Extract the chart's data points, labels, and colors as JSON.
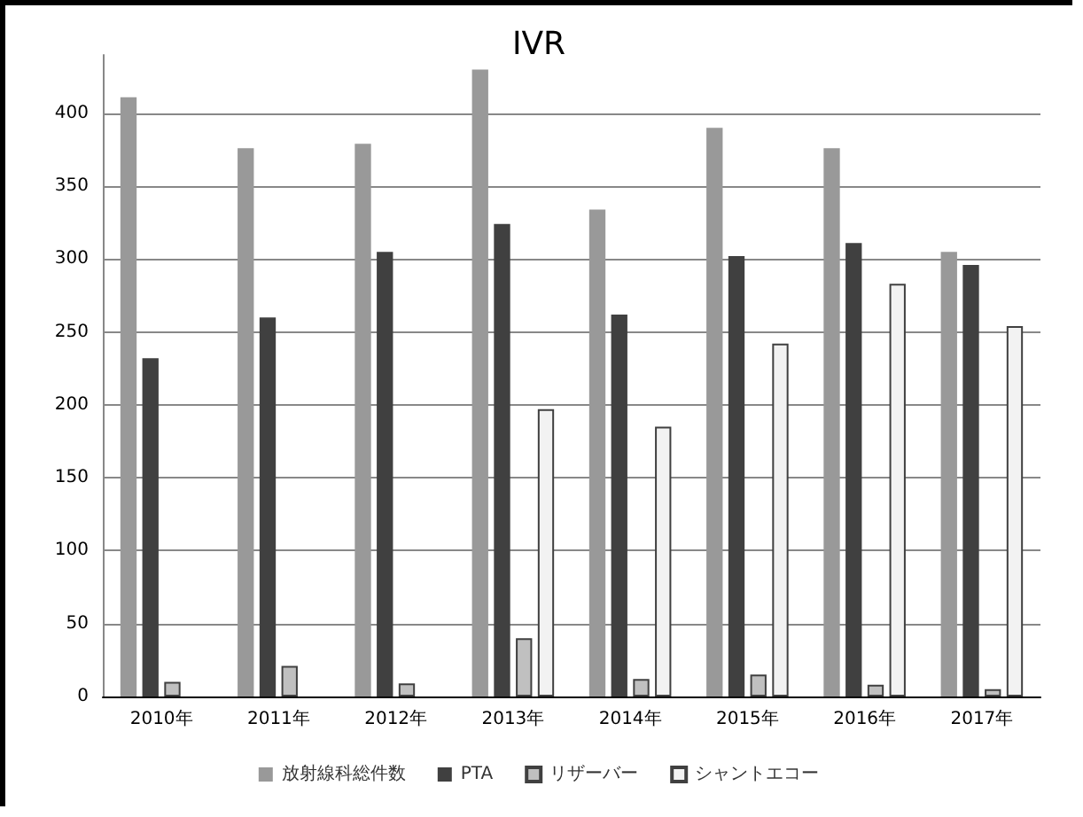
{
  "chart_data": {
    "type": "bar",
    "title": "IVR",
    "categories": [
      "2010年",
      "2011年",
      "2012年",
      "2013年",
      "2014年",
      "2015年",
      "2016年",
      "2017年"
    ],
    "series": [
      {
        "name": "放射線科総件数",
        "color": "#999999",
        "values": [
          411,
          376,
          379,
          430,
          334,
          390,
          376,
          305
        ]
      },
      {
        "name": "PTA",
        "color": "#404040",
        "values": [
          232,
          260,
          305,
          324,
          262,
          302,
          311,
          296
        ]
      },
      {
        "name": "リザーバー",
        "color": "#c0c0c0",
        "values": [
          10,
          21,
          9,
          40,
          12,
          15,
          8,
          5
        ]
      },
      {
        "name": "シャントエコー",
        "color": "#f2f2f2",
        "values": [
          null,
          null,
          null,
          197,
          185,
          242,
          283,
          254
        ]
      }
    ],
    "ylim": [
      0,
      440
    ],
    "yticks": [
      0,
      50,
      100,
      150,
      200,
      250,
      300,
      350,
      400
    ],
    "grid": "y",
    "legend": "bottom"
  }
}
